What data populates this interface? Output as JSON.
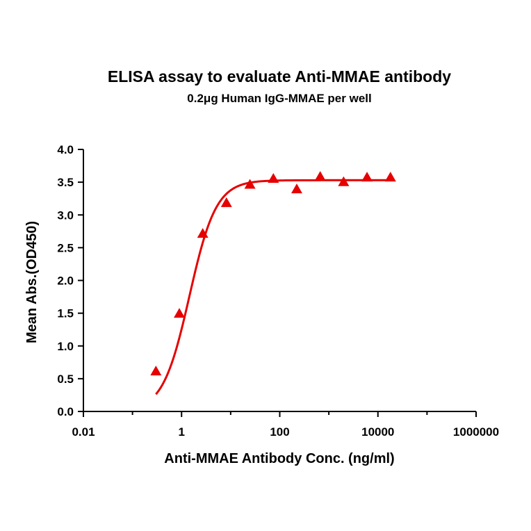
{
  "chart_data": {
    "type": "scatter",
    "title": "ELISA assay to evaluate Anti-MMAE antibody",
    "subtitle": "0.2μg Human IgG-MMAE per well",
    "xlabel": "Anti-MMAE Antibody Conc. (ng/ml)",
    "ylabel": "Mean Abs.(OD450)",
    "x_scale": "log",
    "xlim": [
      0.01,
      1000000
    ],
    "ylim": [
      0,
      4
    ],
    "x_ticks": [
      "0.01",
      "1",
      "100",
      "10000",
      "1000000"
    ],
    "y_ticks": [
      "0.0",
      "0.5",
      "1.0",
      "1.5",
      "2.0",
      "2.5",
      "3.0",
      "3.5",
      "4.0"
    ],
    "grid": false,
    "series": [
      {
        "marker": "triangle",
        "color": "#e60000",
        "x": [
          0.3,
          0.9,
          2.7,
          8.2,
          24.7,
          74.1,
          222,
          667,
          2000,
          6000,
          18000
        ],
        "y": [
          0.61,
          1.49,
          2.71,
          3.18,
          3.46,
          3.55,
          3.39,
          3.58,
          3.5,
          3.57,
          3.57
        ]
      }
    ],
    "fit_curve": {
      "color": "#e60000",
      "model": "4PL",
      "bottom": 0.0,
      "top": 3.53,
      "ec50": 1.45,
      "hill": 1.6,
      "x_range": [
        0.3,
        18000
      ]
    }
  }
}
